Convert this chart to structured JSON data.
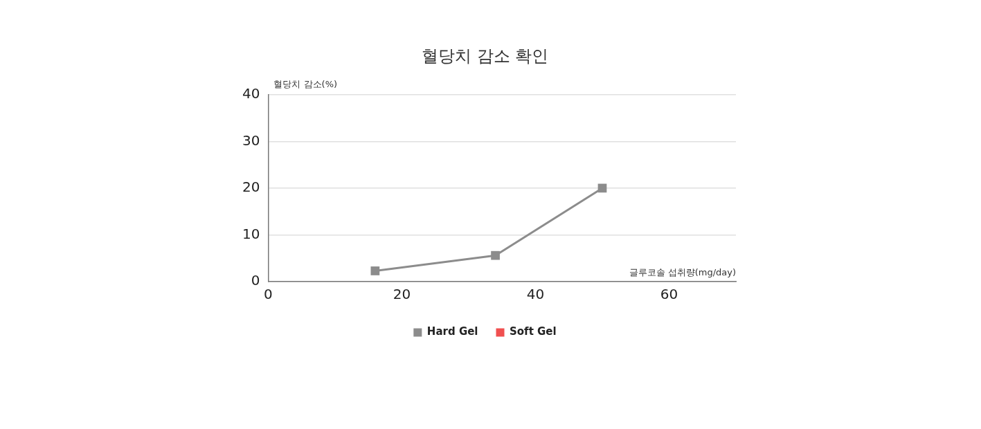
{
  "chart_data": {
    "type": "line",
    "title": "혈당치 감소 확인",
    "xlabel": "글루코솔 섭취량(mg/day)",
    "ylabel": "혈당치 감소(%)",
    "x": [
      16,
      34,
      50
    ],
    "series": [
      {
        "name": "Hard Gel",
        "color": "#8c8c8c",
        "values": [
          2.3,
          5.6,
          20
        ]
      },
      {
        "name": "Soft Gel",
        "color": "#f05050",
        "values": [
          null,
          null,
          null
        ]
      }
    ],
    "xlim": [
      0,
      70
    ],
    "xticks": [
      0,
      20,
      40,
      60
    ],
    "ylim": [
      0,
      40
    ],
    "yticks": [
      0,
      10,
      20,
      30,
      40
    ],
    "grid": "y",
    "legend": "bottom",
    "marker": "square",
    "line_style": "solid"
  }
}
